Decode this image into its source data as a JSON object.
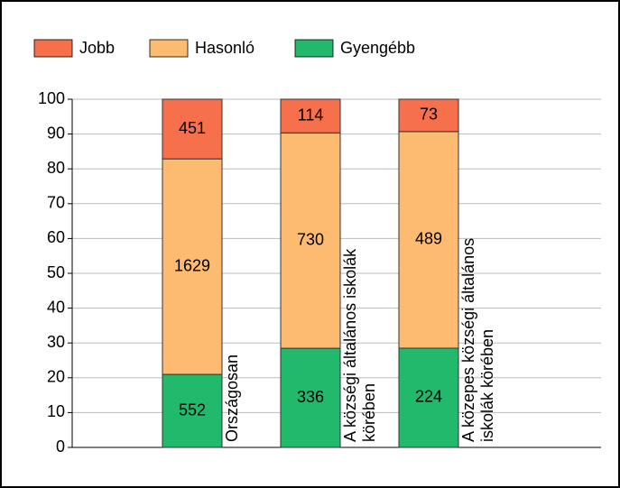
{
  "chart_data": {
    "type": "bar",
    "stacking": "percent",
    "categories": [
      [
        "Országosan"
      ],
      [
        "A községi általános iskolák",
        "körében"
      ],
      [
        "A közepes községi általános",
        "iskolák körében"
      ]
    ],
    "series": [
      {
        "name": "Jobb",
        "color": "#f7704c",
        "values": [
          451,
          114,
          73
        ]
      },
      {
        "name": "Hasonló",
        "color": "#fdbb72",
        "values": [
          1629,
          730,
          489
        ]
      },
      {
        "name": "Gyengébb",
        "color": "#22b96c",
        "values": [
          552,
          336,
          224
        ]
      }
    ],
    "ylim": [
      0,
      100
    ],
    "yticks": [
      0,
      10,
      20,
      30,
      40,
      50,
      60,
      70,
      80,
      90,
      100
    ],
    "grid": true,
    "legend": "top"
  }
}
